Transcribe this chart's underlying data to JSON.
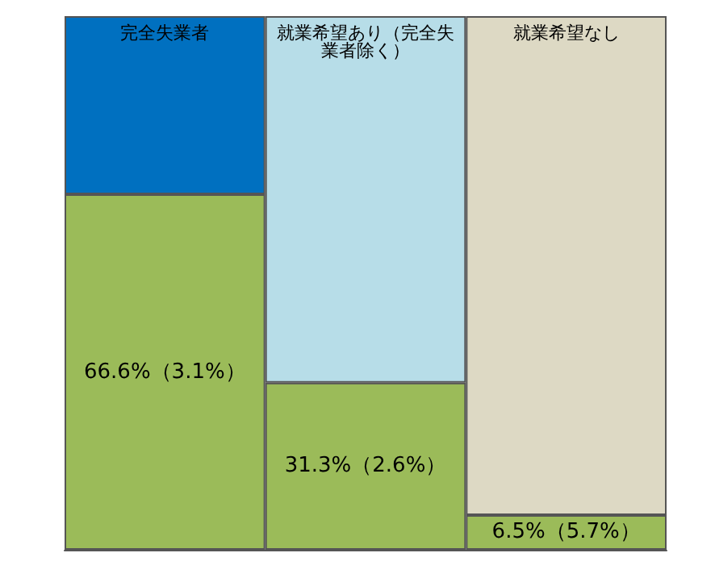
{
  "chart_data": {
    "type": "bar",
    "stacked": true,
    "categories": [
      "完全失業者",
      "就業希望あり（完全失業者除く）",
      "就業希望なし"
    ],
    "series": [
      {
        "color": "#9bbb59",
        "values": [
          66.6,
          31.3,
          6.5
        ],
        "value_labels": [
          "66.6%（3.1%）",
          "31.3%（2.6%）",
          "6.5%（5.7%）"
        ]
      },
      {
        "colors": [
          "#0070c0",
          "#b7dde8",
          "#ddd9c4"
        ],
        "values": [
          33.4,
          68.7,
          93.5
        ]
      }
    ],
    "ylim": [
      0,
      100
    ],
    "tick_labels": false,
    "grid": false
  }
}
